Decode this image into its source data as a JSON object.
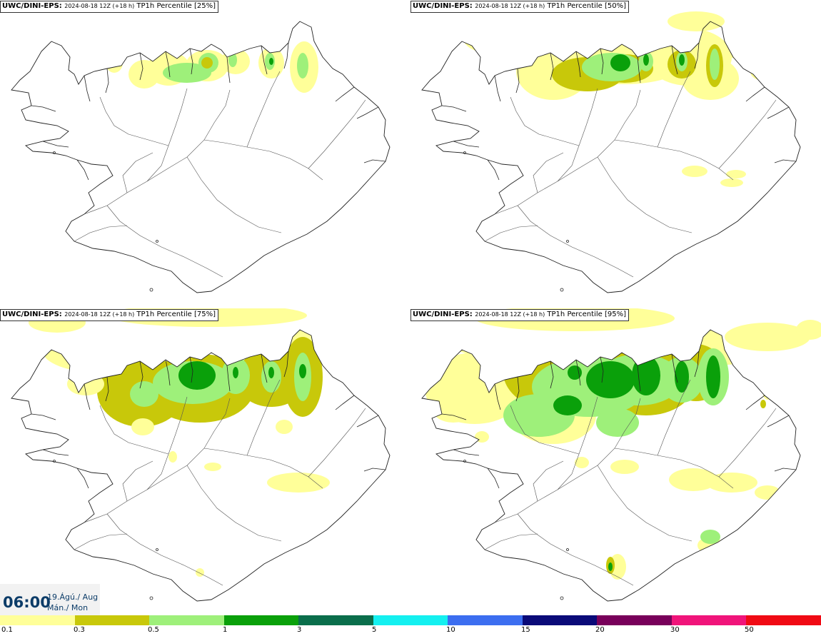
{
  "panels": [
    {
      "model": "UWC/DINI-EPS",
      "run": "2024-08-18 12Z (+18 h)",
      "product": "TP1h Percentile [25%]",
      "level": 0
    },
    {
      "model": "UWC/DINI-EPS",
      "run": "2024-08-18 12Z (+18 h)",
      "product": "TP1h Percentile [50%]",
      "level": 1
    },
    {
      "model": "UWC/DINI-EPS",
      "run": "2024-08-18 12Z (+18 h)",
      "product": "TP1h Percentile [75%]",
      "level": 2
    },
    {
      "model": "UWC/DINI-EPS",
      "run": "2024-08-18 12Z (+18 h)",
      "product": "TP1h Percentile [95%]",
      "level": 3
    }
  ],
  "valid_time": {
    "time": "06:00",
    "date": "19.Ágú./ Aug",
    "weekday": "Mán./ Mon"
  },
  "legend": {
    "colors": [
      "#ffff99",
      "#c8c80a",
      "#9ef07a",
      "#0aa00a",
      "#0a6e4b",
      "#14f0f0",
      "#3c6ef0",
      "#0a0a78",
      "#78005a",
      "#f0147a",
      "#f00a14"
    ],
    "labels": [
      "0.1",
      "0.3",
      "0.5",
      "1",
      "3",
      "5",
      "10",
      "15",
      "20",
      "30",
      "50"
    ]
  }
}
